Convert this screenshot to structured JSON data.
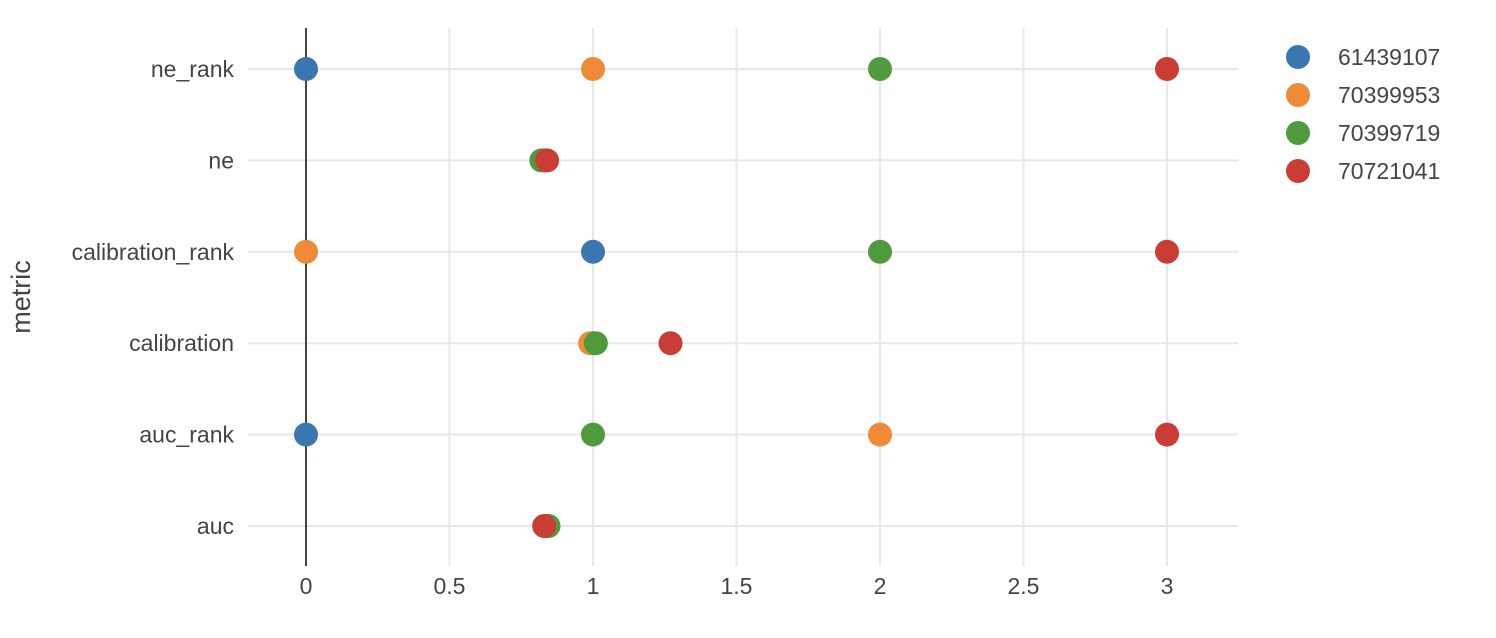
{
  "chart_data": {
    "type": "scatter",
    "title": "",
    "xlabel": "",
    "ylabel": "metric",
    "xlim": [
      -0.2,
      3.25
    ],
    "x_ticks": [
      0,
      0.5,
      1,
      1.5,
      2,
      2.5,
      3
    ],
    "x_tick_labels": [
      "0",
      "0.5",
      "1",
      "1.5",
      "2",
      "2.5",
      "3"
    ],
    "categories": [
      "ne_rank",
      "ne",
      "calibration_rank",
      "calibration",
      "auc_rank",
      "auc"
    ],
    "grid": true,
    "legend_position": "top-right",
    "series": [
      {
        "name": "61439107",
        "color": "#3a77b0",
        "values": [
          0,
          0.83,
          1,
          1.0,
          0,
          0.84
        ]
      },
      {
        "name": "70399953",
        "color": "#ef8a36",
        "values": [
          1,
          0.83,
          0,
          0.99,
          2,
          0.84
        ]
      },
      {
        "name": "70399719",
        "color": "#4f9a3d",
        "values": [
          2,
          0.82,
          2,
          1.01,
          1,
          0.845
        ]
      },
      {
        "name": "70721041",
        "color": "#c93d34",
        "values": [
          3,
          0.84,
          3,
          1.27,
          3,
          0.83
        ]
      }
    ]
  }
}
